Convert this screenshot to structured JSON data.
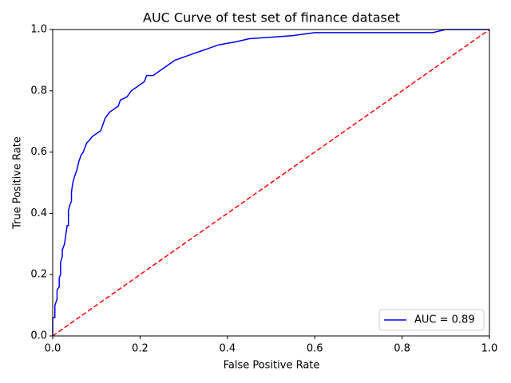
{
  "chart_data": {
    "type": "line",
    "title": "AUC Curve of test set of finance dataset",
    "x_label": "False Positive Rate",
    "y_label": "True Positive Rate",
    "xlim": [
      0,
      1
    ],
    "ylim": [
      0,
      1
    ],
    "xticks": [
      {
        "value": 0,
        "label": "0.0"
      },
      0.2,
      0.4,
      0.6,
      0.8,
      {
        "value": 1,
        "label": "1.0"
      }
    ],
    "yticks": [
      {
        "value": 0,
        "label": "0.0"
      },
      0.2,
      0.4,
      0.6,
      0.8,
      {
        "value": 1,
        "label": "1.0"
      }
    ],
    "legend": "lower right",
    "series": [
      {
        "name": "AUC = 0.89",
        "color": "#0000ff",
        "x": [
          0,
          0,
          0.005,
          0.005,
          0.01,
          0.01,
          0.015,
          0.015,
          0.018,
          0.018,
          0.022,
          0.022,
          0.027,
          0.03,
          0.033,
          0.036,
          0.036,
          0.04,
          0.043,
          0.043,
          0.046,
          0.05,
          0.055,
          0.06,
          0.065,
          0.07,
          0.075,
          0.078,
          0.085,
          0.09,
          0.1,
          0.11,
          0.115,
          0.12,
          0.13,
          0.14,
          0.15,
          0.155,
          0.17,
          0.175,
          0.18,
          0.19,
          0.2,
          0.21,
          0.215,
          0.23,
          0.24,
          0.25,
          0.26,
          0.27,
          0.28,
          0.3,
          0.32,
          0.34,
          0.36,
          0.38,
          0.4,
          0.42,
          0.45,
          0.5,
          0.55,
          0.6,
          0.7,
          0.87,
          0.9,
          1
        ],
        "values": [
          0,
          0.06,
          0.06,
          0.1,
          0.12,
          0.15,
          0.16,
          0.19,
          0.2,
          0.24,
          0.26,
          0.28,
          0.3,
          0.33,
          0.36,
          0.36,
          0.41,
          0.43,
          0.44,
          0.47,
          0.5,
          0.52,
          0.54,
          0.57,
          0.59,
          0.6,
          0.62,
          0.63,
          0.64,
          0.65,
          0.66,
          0.67,
          0.69,
          0.71,
          0.73,
          0.74,
          0.75,
          0.77,
          0.78,
          0.79,
          0.8,
          0.81,
          0.82,
          0.83,
          0.85,
          0.85,
          0.86,
          0.87,
          0.88,
          0.89,
          0.9,
          0.91,
          0.92,
          0.93,
          0.94,
          0.95,
          0.955,
          0.96,
          0.97,
          0.975,
          0.98,
          0.99,
          0.99,
          0.99,
          1,
          1
        ]
      }
    ],
    "reference_line": {
      "color": "#ff0000",
      "dashed": true,
      "x": [
        0,
        1
      ],
      "values": [
        0,
        1
      ]
    }
  }
}
